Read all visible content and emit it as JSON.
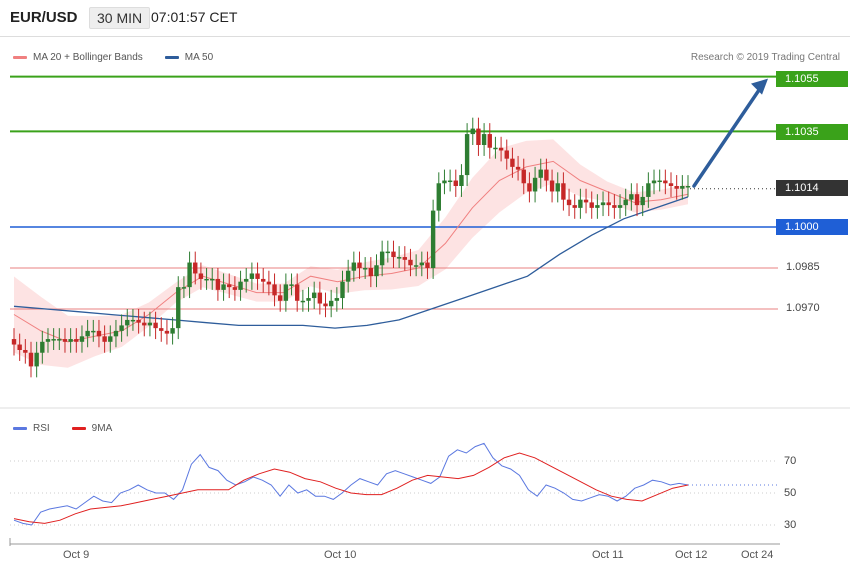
{
  "header": {
    "symbol": "EUR/USD",
    "timeframe": "30 MIN",
    "time": "07:01:57 CET"
  },
  "legend_main": [
    {
      "label": "MA 20 + Bollinger Bands",
      "color": "#f08080"
    },
    {
      "label": "MA 50",
      "color": "#2e5d9b"
    }
  ],
  "credit": "Research © 2019 Trading Central",
  "price_tags": {
    "target2": "1.1055",
    "target1": "1.1035",
    "current": "1.1014",
    "pivot": "1.1000"
  },
  "support_labels": [
    "1.0985",
    "1.0970"
  ],
  "legend_rsi": [
    {
      "label": "RSI",
      "color": "#5b78e0"
    },
    {
      "label": "9MA",
      "color": "#e02020"
    }
  ],
  "rsi_ticks": [
    "70",
    "50",
    "30"
  ],
  "x_ticks": [
    "Oct 9",
    "Oct 10",
    "Oct 11",
    "Oct 12",
    "Oct 24"
  ],
  "colors": {
    "up": "#2e7d32",
    "down": "#c62828",
    "ma20": "#f08080",
    "ma50": "#2e5d9b",
    "band": "#fde0e0",
    "resistance": "#3aa21a",
    "pivot": "#1f5fd6",
    "support": "#e88080",
    "current": "#333333",
    "arrow": "#2e5d9b"
  },
  "chart_data": [
    {
      "type": "candlestick",
      "title": "EUR/USD 30 MIN",
      "y_range": [
        1.094,
        1.1065
      ],
      "levels": [
        {
          "label": "1.1055",
          "value": 1.1055,
          "kind": "resistance"
        },
        {
          "label": "1.1035",
          "value": 1.1035,
          "kind": "resistance"
        },
        {
          "label": "1.1014",
          "value": 1.1014,
          "kind": "current"
        },
        {
          "label": "1.1000",
          "value": 1.1,
          "kind": "pivot"
        },
        {
          "label": "1.0985",
          "value": 1.0985,
          "kind": "support"
        },
        {
          "label": "1.0970",
          "value": 1.097,
          "kind": "support"
        }
      ],
      "closes": [
        1.0957,
        1.0955,
        1.0954,
        1.0949,
        1.0954,
        1.0958,
        1.0959,
        1.0959,
        1.0959,
        1.0958,
        1.0959,
        1.0958,
        1.096,
        1.0962,
        1.0962,
        1.096,
        1.0958,
        1.096,
        1.0962,
        1.0964,
        1.0966,
        1.0966,
        1.0965,
        1.0964,
        1.0965,
        1.0963,
        1.0962,
        1.0961,
        1.0963,
        1.0978,
        1.0978,
        1.0987,
        1.0983,
        1.0981,
        1.0981,
        1.0981,
        1.0977,
        1.0979,
        1.0978,
        1.0977,
        1.098,
        1.0981,
        1.0983,
        1.0981,
        1.098,
        1.0979,
        1.0975,
        1.0973,
        1.0979,
        1.0979,
        1.0973,
        1.0973,
        1.0974,
        1.0976,
        1.0972,
        1.0971,
        1.0973,
        1.0974,
        1.098,
        1.0984,
        1.0987,
        1.0985,
        1.0985,
        1.0982,
        1.0986,
        1.0991,
        1.0991,
        1.0989,
        1.0989,
        1.0988,
        1.0986,
        1.0986,
        1.0987,
        1.0985,
        1.1006,
        1.1016,
        1.1017,
        1.1017,
        1.1015,
        1.1019,
        1.1034,
        1.1036,
        1.103,
        1.1034,
        1.1029,
        1.1029,
        1.1028,
        1.1025,
        1.1022,
        1.1021,
        1.1016,
        1.1013,
        1.1018,
        1.1021,
        1.1017,
        1.1013,
        1.1016,
        1.101,
        1.1008,
        1.1007,
        1.101,
        1.1009,
        1.1007,
        1.1008,
        1.1009,
        1.1008,
        1.1007,
        1.1008,
        1.101,
        1.1012,
        1.1008,
        1.1011,
        1.1016,
        1.1017,
        1.1017,
        1.1016,
        1.1015,
        1.1014,
        1.1015,
        1.1015
      ],
      "ma50": [
        1.0971,
        1.097,
        1.0969,
        1.0968,
        1.0967,
        1.0966,
        1.0965,
        1.0964,
        1.0964,
        1.0964,
        1.0963,
        1.0964
      ],
      "ma20": [
        1.0968,
        1.0962,
        1.0958,
        1.096,
        1.0962,
        1.0968,
        1.0976,
        1.0982,
        1.0979,
        1.0976,
        1.0976,
        1.0982,
        1.098,
        1.0982,
        1.0983,
        1.0985,
        1.0994,
        1.1007,
        1.1017,
        1.1022,
        1.1024,
        1.1017,
        1.1013,
        1.1009,
        1.101,
        1.1012
      ],
      "arrow_target": 1.1055
    },
    {
      "type": "line",
      "title": "",
      "ylim": [
        20,
        90
      ],
      "yticks": [
        70,
        50,
        30
      ],
      "series": [
        {
          "name": "RSI",
          "values": [
            33,
            31,
            30,
            38,
            40,
            41,
            42,
            40,
            44,
            48,
            45,
            44,
            50,
            52,
            55,
            52,
            50,
            50,
            46,
            52,
            68,
            74,
            66,
            64,
            58,
            55,
            57,
            60,
            58,
            55,
            48,
            55,
            50,
            52,
            48,
            48,
            46,
            50,
            55,
            59,
            57,
            55,
            62,
            64,
            62,
            60,
            58,
            56,
            60,
            73,
            77,
            75,
            79,
            81,
            72,
            67,
            65,
            61,
            52,
            48,
            55,
            53,
            50,
            46,
            45,
            47,
            49,
            48,
            45,
            48,
            53,
            55,
            58,
            57,
            55,
            56,
            55
          ]
        },
        {
          "name": "9MA",
          "values": [
            34,
            32,
            31,
            33,
            37,
            40,
            41,
            42,
            44,
            46,
            48,
            50,
            52,
            52,
            52,
            58,
            62,
            65,
            63,
            59,
            57,
            53,
            50,
            49,
            49,
            53,
            58,
            61,
            60,
            59,
            61,
            66,
            72,
            75,
            72,
            67,
            62,
            57,
            52,
            48,
            46,
            45,
            49,
            53,
            55
          ]
        }
      ]
    }
  ]
}
